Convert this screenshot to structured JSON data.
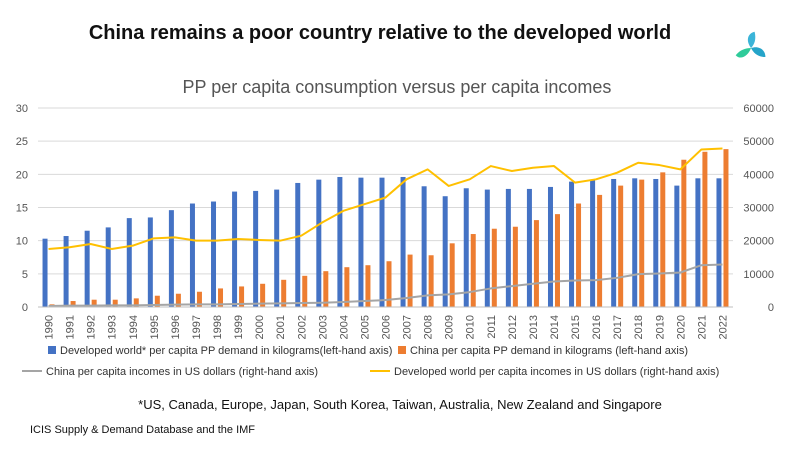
{
  "page": {
    "headline": "China remains a poor country relative to the developed world",
    "footnote": "*US, Canada, Europe, Japan, South Korea, Taiwan, Australia, New Zealand and Singapore",
    "source": "ICIS Supply & Demand Database and the IMF",
    "logo": "icis-logo"
  },
  "colors": {
    "developed_bars": "#4472C4",
    "china_bars": "#ED7D31",
    "china_income_line": "#A5A5A5",
    "developed_income_line": "#FFC000",
    "grid": "#D9D9D9"
  },
  "chart_data": {
    "type": "bar",
    "title": "PP per capita consumption versus per capita incomes",
    "categories": [
      "1990",
      "1991",
      "1992",
      "1993",
      "1994",
      "1995",
      "1996",
      "1997",
      "1998",
      "1999",
      "2000",
      "2001",
      "2002",
      "2003",
      "2004",
      "2005",
      "2006",
      "2007",
      "2008",
      "2009",
      "2010",
      "2011",
      "2012",
      "2013",
      "2014",
      "2015",
      "2016",
      "2017",
      "2018",
      "2019",
      "2020",
      "2021",
      "2022"
    ],
    "y_left": {
      "ylim": [
        0,
        30
      ],
      "ticks": [
        "0",
        "5",
        "10",
        "15",
        "20",
        "25",
        "30"
      ]
    },
    "y_right": {
      "ylim": [
        0,
        60000
      ],
      "ticks": [
        "0",
        "10000",
        "20000",
        "30000",
        "40000",
        "50000",
        "60000"
      ]
    },
    "grid": true,
    "legend_placement": "bottom",
    "series": [
      {
        "name": "Developed world* per capita PP demand in kilograms(left-hand axis)",
        "kind": "bar",
        "axis": "left",
        "values": [
          10.3,
          10.7,
          11.5,
          12.0,
          13.4,
          13.5,
          14.6,
          15.6,
          15.9,
          17.4,
          17.5,
          17.7,
          18.7,
          19.2,
          19.6,
          19.5,
          19.5,
          19.6,
          18.2,
          16.7,
          17.9,
          17.7,
          17.8,
          17.8,
          18.1,
          18.9,
          19.2,
          19.3,
          19.4,
          19.3,
          18.3,
          19.4,
          19.4
        ]
      },
      {
        "name": "China per capita PP demand in kilograms (left-hand axis)",
        "kind": "bar",
        "axis": "left",
        "values": [
          0.4,
          0.9,
          1.1,
          1.1,
          1.3,
          1.7,
          2.0,
          2.3,
          2.8,
          3.1,
          3.5,
          4.1,
          4.7,
          5.4,
          6.0,
          6.3,
          6.9,
          7.9,
          7.8,
          9.6,
          11.0,
          11.8,
          12.1,
          13.1,
          14.0,
          15.6,
          16.9,
          18.3,
          19.2,
          20.3,
          22.2,
          23.4,
          23.8
        ]
      },
      {
        "name": "China per capita incomes in US dollars (right-hand axis)",
        "kind": "line",
        "axis": "right",
        "values": [
          300,
          400,
          400,
          500,
          500,
          600,
          700,
          800,
          800,
          900,
          1000,
          1100,
          1200,
          1300,
          1500,
          1800,
          2100,
          2700,
          3500,
          3800,
          4500,
          5600,
          6300,
          7000,
          7700,
          8000,
          8100,
          8800,
          9900,
          10100,
          10400,
          12600,
          12800
        ]
      },
      {
        "name": "Developed world per capita incomes in US dollars (right-hand axis)",
        "kind": "line",
        "axis": "right",
        "values": [
          17500,
          18000,
          19000,
          17500,
          18500,
          20700,
          21000,
          20000,
          20000,
          20500,
          20200,
          20000,
          21500,
          25500,
          29000,
          31000,
          33000,
          38500,
          41500,
          36500,
          38500,
          42500,
          41000,
          42000,
          42500,
          37500,
          38500,
          40500,
          43500,
          42800,
          41500,
          47500,
          47800
        ]
      }
    ]
  }
}
